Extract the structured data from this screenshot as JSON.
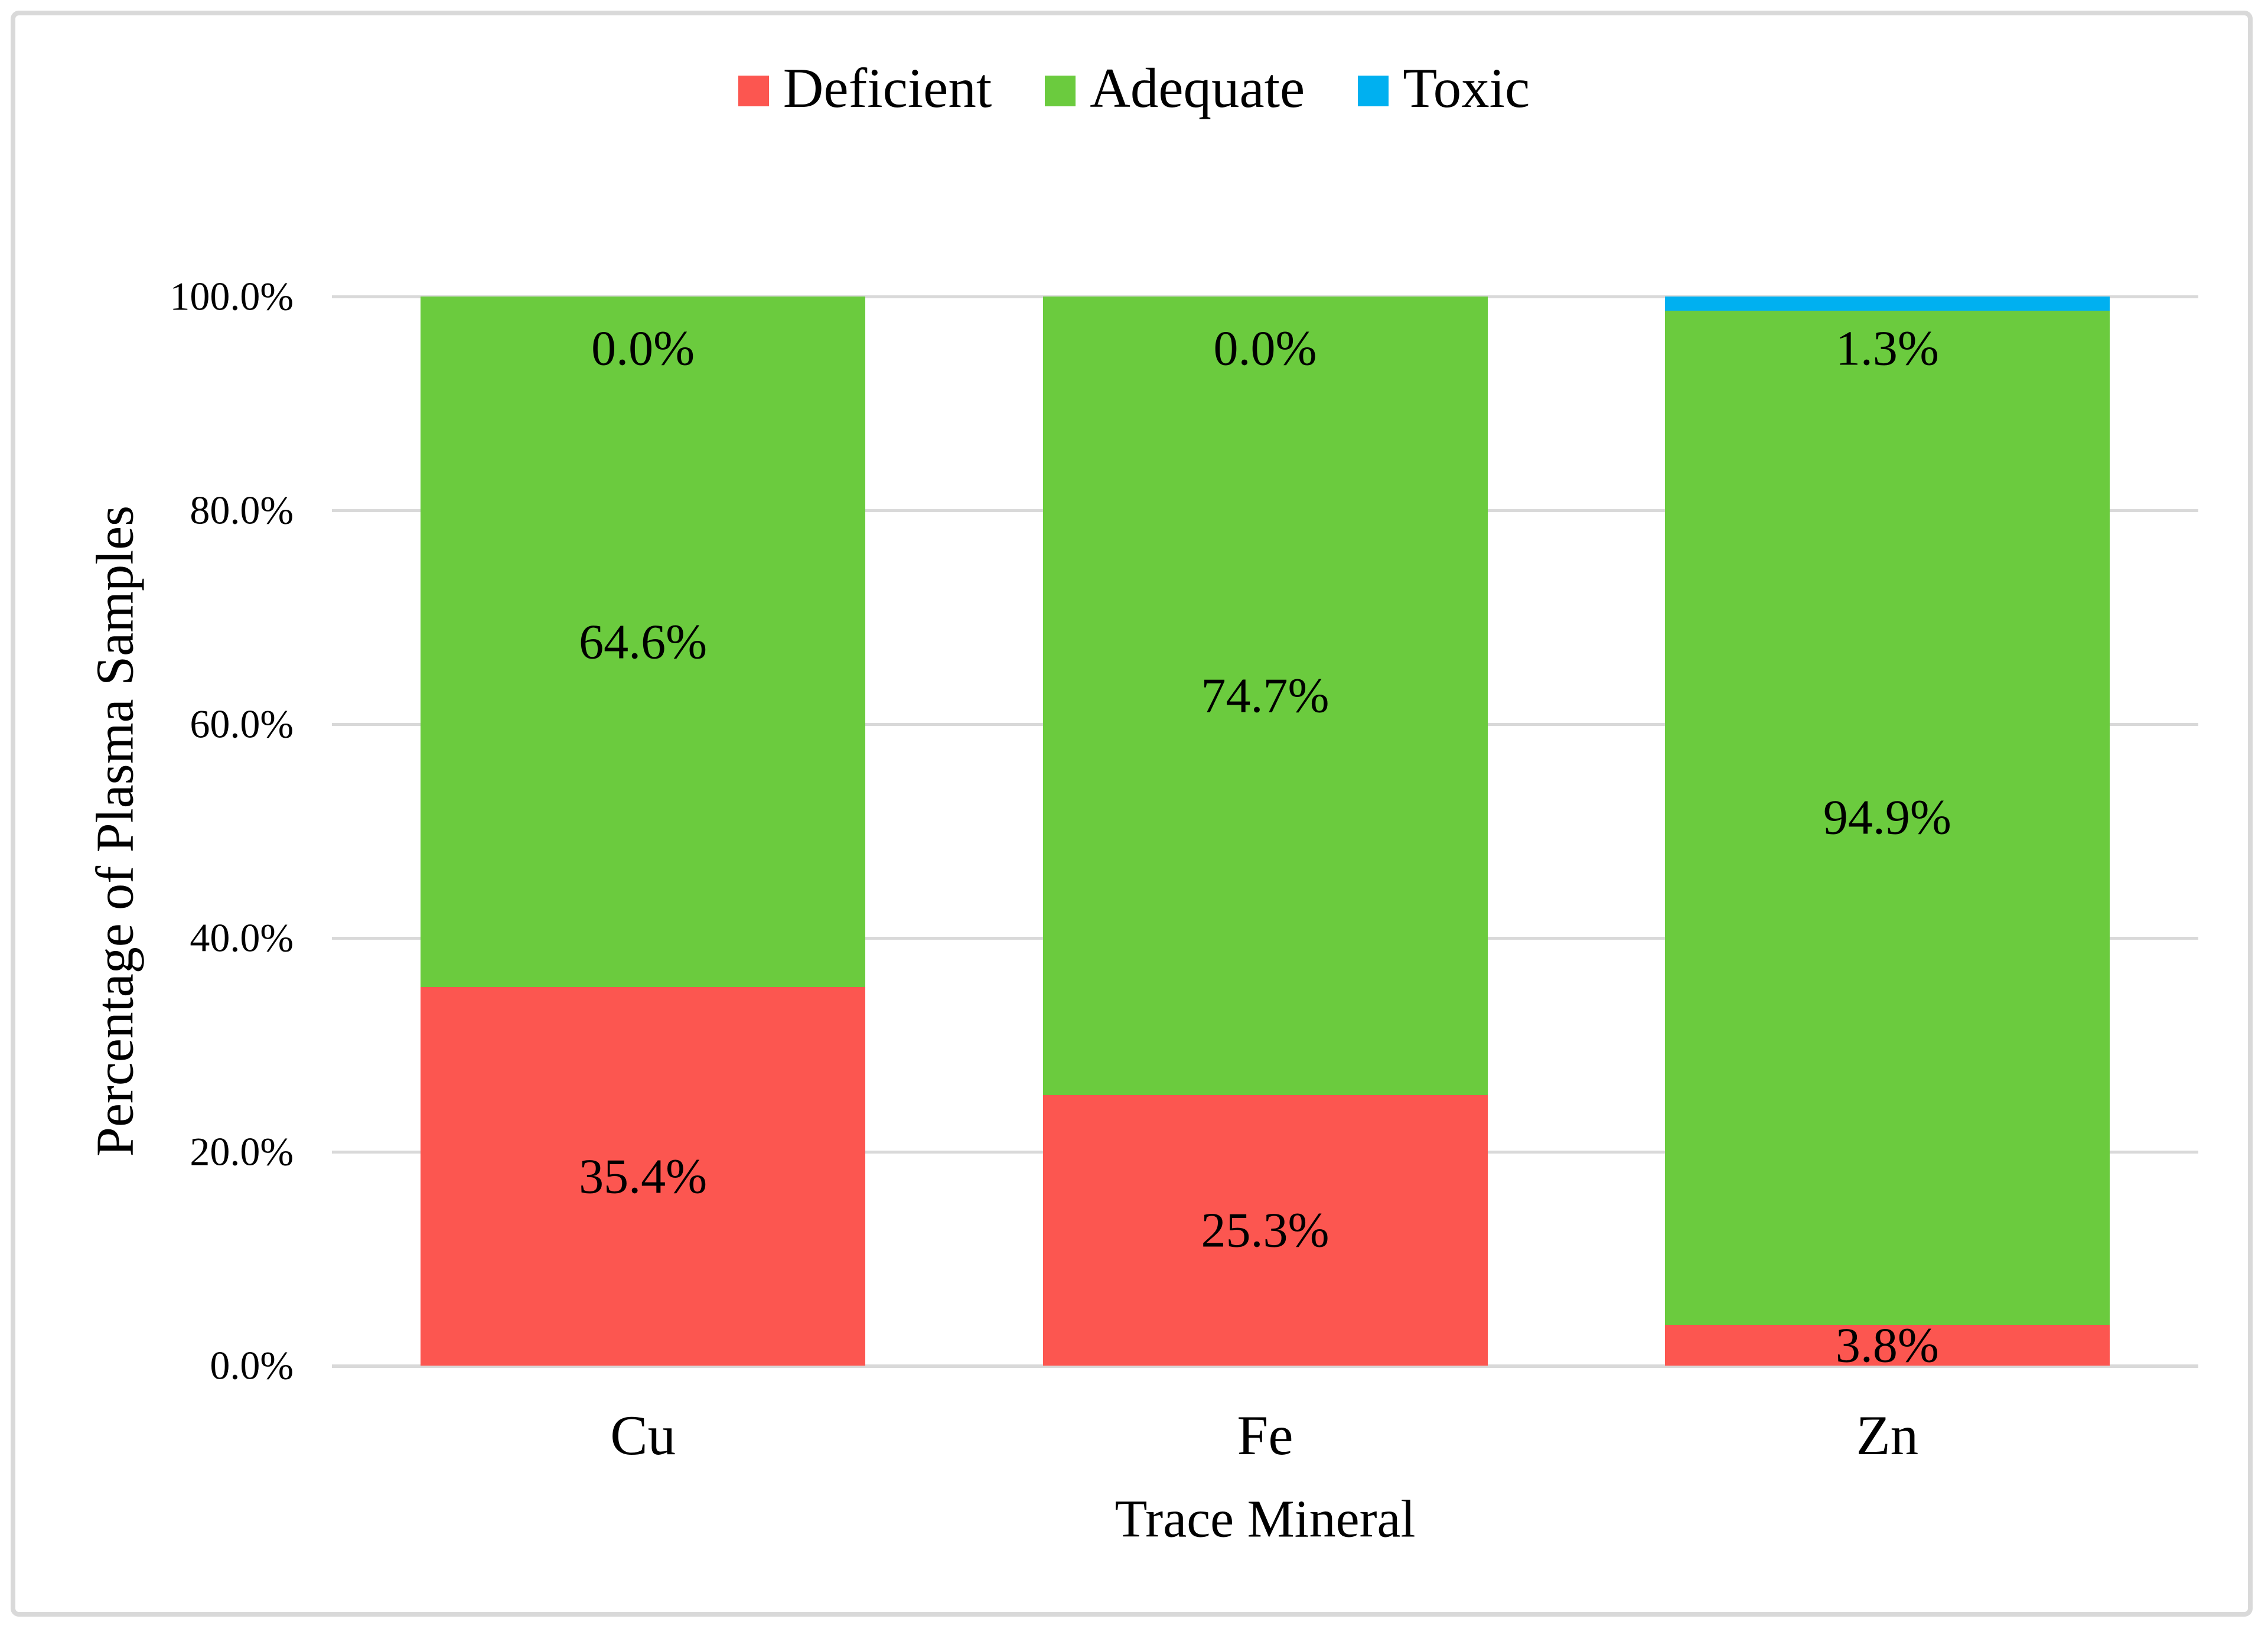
{
  "legend": {
    "items": [
      {
        "label": "Deficient",
        "color": "#FC5650"
      },
      {
        "label": "Adequate",
        "color": "#6BCB3E"
      },
      {
        "label": "Toxic",
        "color": "#00B0F0"
      }
    ]
  },
  "y_axis": {
    "title": "Percentage of Plasma Samples",
    "ticks": [
      "0.0%",
      "20.0%",
      "40.0%",
      "60.0%",
      "80.0%",
      "100.0%"
    ]
  },
  "x_axis": {
    "title": "Trace Mineral",
    "categories": [
      "Cu",
      "Fe",
      "Zn"
    ]
  },
  "chart_data": {
    "type": "bar",
    "subtype": "stacked-100-percent-column",
    "categories": [
      "Cu",
      "Fe",
      "Zn"
    ],
    "series": [
      {
        "name": "Deficient",
        "color": "#FC5650",
        "values": [
          35.4,
          25.3,
          3.8
        ],
        "labels": [
          "35.4%",
          "25.3%",
          "3.8%"
        ]
      },
      {
        "name": "Adequate",
        "color": "#6BCB3E",
        "values": [
          64.6,
          74.7,
          94.9
        ],
        "labels": [
          "64.6%",
          "74.7%",
          "94.9%"
        ]
      },
      {
        "name": "Toxic",
        "color": "#00B0F0",
        "values": [
          0.0,
          0.0,
          1.3
        ],
        "labels": [
          "0.0%",
          "0.0%",
          "1.3%"
        ]
      }
    ],
    "title": "",
    "xlabel": "Trace Mineral",
    "ylabel": "Percentage of Plasma Samples",
    "ylim": [
      0,
      100
    ],
    "ytick_interval": 20,
    "ytick_format": "one-decimal-percent",
    "grid": true,
    "gridline_color": "#D9D9D9",
    "legend_position": "top-center",
    "data_label_position": "inside-center",
    "background": "#FFFFFF",
    "border_color": "#D9D9D9"
  }
}
